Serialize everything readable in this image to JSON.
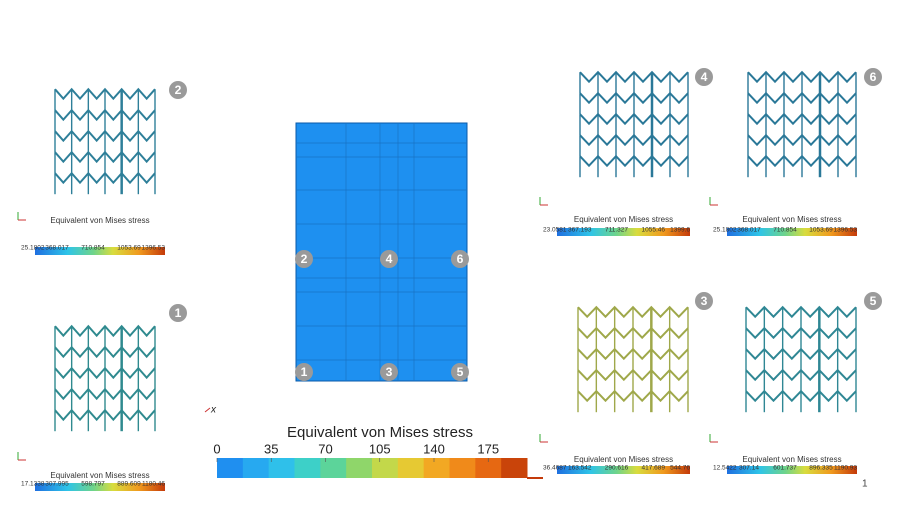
{
  "center": {
    "markers": [
      "2",
      "4",
      "6",
      "1",
      "3",
      "5"
    ],
    "axis_label": "x",
    "colorbar": {
      "title": "Equivalent von Mises stress",
      "range": [
        0,
        200
      ],
      "ticks": [
        0,
        35,
        70,
        105,
        140,
        175
      ]
    }
  },
  "panels": [
    {
      "badge": "2",
      "colorbar_title": "Equivalent von Mises stress",
      "ticks": [
        "25.1802",
        "368.017",
        "710.854",
        "1053.69",
        "1396.53"
      ]
    },
    {
      "badge": "1",
      "colorbar_title": "Equivalent von Mises stress",
      "ticks": [
        "17.1338",
        "307.995",
        "598.797",
        "889.609",
        "1180.46"
      ]
    },
    {
      "badge": "4",
      "colorbar_title": "Equivalent von Mises stress",
      "ticks": [
        "23.0581",
        "367.193",
        "711.327",
        "1055.46",
        "1399.6"
      ]
    },
    {
      "badge": "6",
      "colorbar_title": "Equivalent von Mises stress",
      "ticks": [
        "25.1802",
        "368.017",
        "710.854",
        "1053.69",
        "1396.53"
      ]
    },
    {
      "badge": "3",
      "colorbar_title": "Equivalent von Mises stress",
      "ticks": [
        "36.4687",
        "163.542",
        "290.616",
        "417.689",
        "544.76"
      ]
    },
    {
      "badge": "5",
      "colorbar_title": "Equivalent von Mises stress",
      "ticks": [
        "12.5422",
        "307.14",
        "601.737",
        "896.335",
        "1190.93"
      ]
    }
  ],
  "page_number": "1"
}
